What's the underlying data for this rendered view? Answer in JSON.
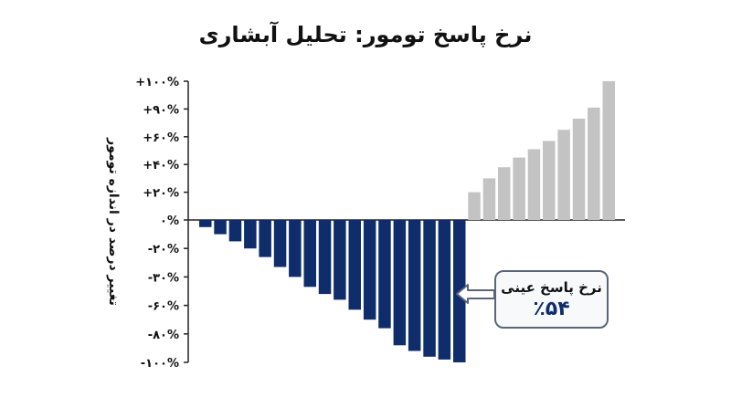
{
  "chart_data": {
    "type": "bar",
    "title": "نرخ پاسخ تومور: تحلیل آبشاری",
    "ylabel": "تغییر درصد در اندازه تومور",
    "xlabel": "",
    "y_tick_labels": [
      "+۱۰۰%",
      "+۹۰%",
      "+۶۰%",
      "+۴۰%",
      "+۲۰%",
      "۰%",
      "-۲۰%",
      "-۳۰%",
      "-۶۰%",
      "-۸۰%",
      "-۱۰۰%"
    ],
    "values": [
      -5,
      -10,
      -15,
      -20,
      -26,
      -33,
      -40,
      -47,
      -52,
      -56,
      -63,
      -70,
      -76,
      -88,
      -92,
      -96,
      -98,
      -100,
      20,
      30,
      38,
      45,
      51,
      57,
      65,
      73,
      81,
      100
    ],
    "colors": {
      "negative": "#0f2d6b",
      "positive": "#c3c3c3"
    },
    "grid": false,
    "annotation": {
      "label": "نرخ پاسخ عینی",
      "value": "٪۵۴"
    }
  }
}
